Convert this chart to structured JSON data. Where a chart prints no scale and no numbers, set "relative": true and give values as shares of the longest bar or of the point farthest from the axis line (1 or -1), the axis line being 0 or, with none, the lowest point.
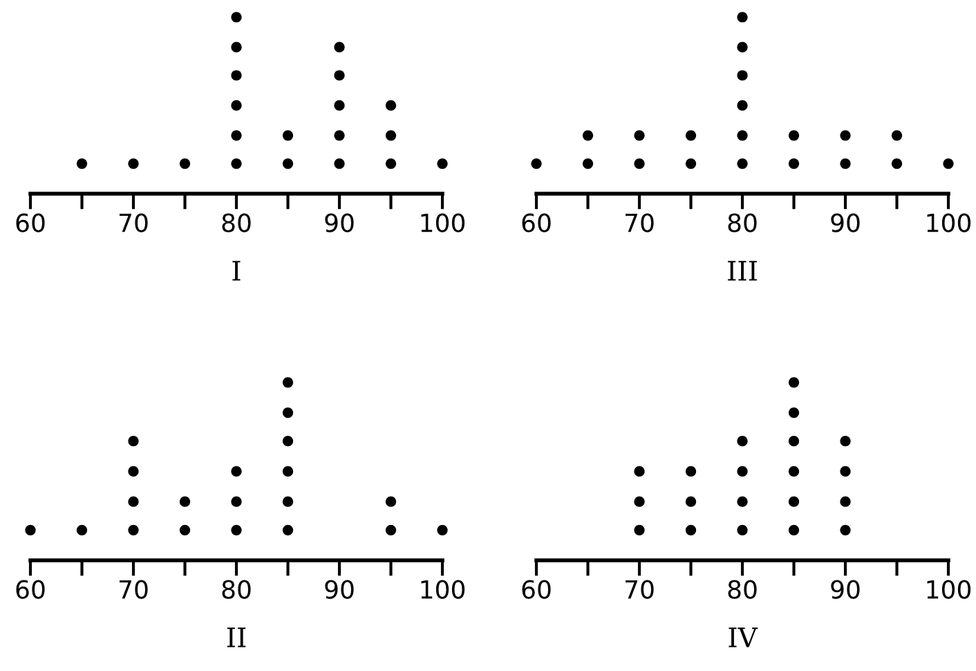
{
  "chart_data": [
    {
      "type": "scatter",
      "xlabel": "I",
      "color": "#000000",
      "marker": "circle",
      "tick_labels": "x",
      "relative": true,
      "x": [
        65,
        70,
        75,
        80,
        80,
        80,
        80,
        80,
        80,
        85,
        85,
        90,
        90,
        90,
        90,
        90,
        95,
        95,
        95,
        100
      ],
      "values": [
        0.17,
        0.17,
        0.17,
        0.17,
        0.33,
        0.5,
        0.67,
        0.83,
        1,
        0.17,
        0.33,
        0.17,
        0.33,
        0.5,
        0.67,
        0.83,
        0.17,
        0.33,
        0.5,
        0.17
      ],
      "xlim": [
        60,
        100
      ],
      "xticks": [
        60,
        {
          "value": 65,
          "label": null
        },
        70,
        {
          "value": 75,
          "label": null
        },
        80,
        {
          "value": 85,
          "label": null
        },
        90,
        {
          "value": 95,
          "label": null
        },
        100
      ]
    },
    {
      "type": "scatter",
      "xlabel": "III",
      "color": "#000000",
      "marker": "circle",
      "tick_labels": "x",
      "relative": true,
      "x": [
        60,
        65,
        65,
        70,
        70,
        75,
        75,
        80,
        80,
        80,
        80,
        80,
        80,
        85,
        85,
        90,
        90,
        95,
        95,
        100
      ],
      "values": [
        0.17,
        0.17,
        0.33,
        0.17,
        0.33,
        0.17,
        0.33,
        0.17,
        0.33,
        0.5,
        0.67,
        0.83,
        1,
        0.17,
        0.33,
        0.17,
        0.33,
        0.17,
        0.33,
        0.17
      ],
      "xlim": [
        60,
        100
      ],
      "xticks": [
        60,
        {
          "value": 65,
          "label": null
        },
        70,
        {
          "value": 75,
          "label": null
        },
        80,
        {
          "value": 85,
          "label": null
        },
        90,
        {
          "value": 95,
          "label": null
        },
        100
      ]
    },
    {
      "type": "scatter",
      "xlabel": "II",
      "color": "#000000",
      "marker": "circle",
      "tick_labels": "x",
      "relative": true,
      "x": [
        60,
        65,
        70,
        70,
        70,
        70,
        75,
        75,
        80,
        80,
        80,
        85,
        85,
        85,
        85,
        85,
        85,
        95,
        95,
        100
      ],
      "values": [
        0.17,
        0.17,
        0.17,
        0.33,
        0.5,
        0.67,
        0.17,
        0.33,
        0.17,
        0.33,
        0.5,
        0.17,
        0.33,
        0.5,
        0.67,
        0.83,
        1,
        0.17,
        0.33,
        0.17
      ],
      "xlim": [
        60,
        100
      ],
      "xticks": [
        60,
        {
          "value": 65,
          "label": null
        },
        70,
        {
          "value": 75,
          "label": null
        },
        80,
        {
          "value": 85,
          "label": null
        },
        90,
        {
          "value": 95,
          "label": null
        },
        100
      ]
    },
    {
      "type": "scatter",
      "xlabel": "IV",
      "color": "#000000",
      "marker": "circle",
      "tick_labels": "x",
      "relative": true,
      "x": [
        70,
        70,
        70,
        75,
        75,
        75,
        80,
        80,
        80,
        80,
        85,
        85,
        85,
        85,
        85,
        85,
        90,
        90,
        90,
        90
      ],
      "values": [
        0.17,
        0.33,
        0.5,
        0.17,
        0.33,
        0.5,
        0.17,
        0.33,
        0.5,
        0.67,
        0.17,
        0.33,
        0.5,
        0.67,
        0.83,
        1,
        0.17,
        0.33,
        0.5,
        0.67
      ],
      "xlim": [
        60,
        100
      ],
      "xticks": [
        60,
        {
          "value": 65,
          "label": null
        },
        70,
        {
          "value": 75,
          "label": null
        },
        80,
        {
          "value": 85,
          "label": null
        },
        90,
        {
          "value": 95,
          "label": null
        },
        100
      ]
    }
  ]
}
